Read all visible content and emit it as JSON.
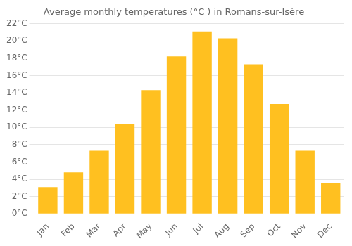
{
  "chart_data": {
    "type": "bar",
    "title": "Average monthly temperatures (°C ) in Romans-sur-Isère",
    "categories": [
      "Jan",
      "Feb",
      "Mar",
      "Apr",
      "May",
      "Jun",
      "Jul",
      "Aug",
      "Sep",
      "Oct",
      "Nov",
      "Dec"
    ],
    "values": [
      3.1,
      4.8,
      7.3,
      10.4,
      14.3,
      18.2,
      21.1,
      20.3,
      17.3,
      12.7,
      7.3,
      3.6
    ],
    "color": "#FFC020",
    "ylim": [
      0,
      22
    ],
    "yticks": [
      {
        "value": 0,
        "label": "0°C"
      },
      {
        "value": 2,
        "label": "2°C"
      },
      {
        "value": 4,
        "label": "4°C"
      },
      {
        "value": 6,
        "label": "6°C"
      },
      {
        "value": 8,
        "label": "8°C"
      },
      {
        "value": 10,
        "label": "10°C"
      },
      {
        "value": 12,
        "label": "12°C"
      },
      {
        "value": 14,
        "label": "14°C"
      },
      {
        "value": 16,
        "label": "16°C"
      },
      {
        "value": 18,
        "label": "18°C"
      },
      {
        "value": 20,
        "label": "20°C"
      },
      {
        "value": 22,
        "label": "22°C"
      }
    ],
    "grid": true
  }
}
